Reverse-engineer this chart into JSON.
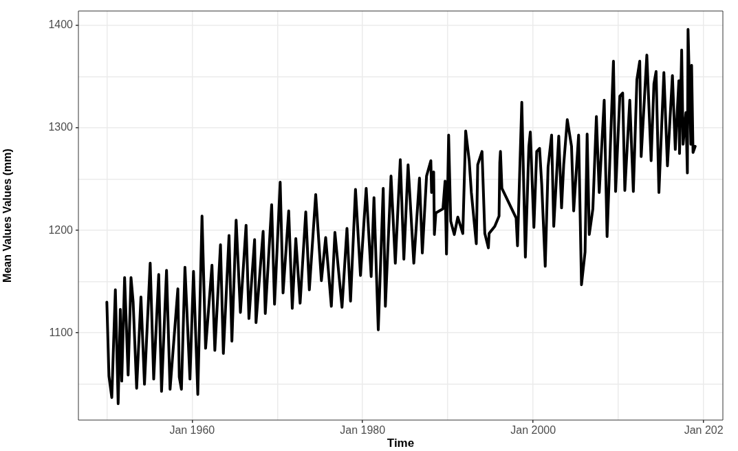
{
  "chart_data": {
    "type": "line",
    "xlabel": "Time",
    "ylabel": "Mean Values Values (mm)",
    "xlim": [
      "1946-09",
      "2022-04"
    ],
    "xticks": [
      {
        "value": "1950-01",
        "label": null
      },
      {
        "value": "1960-01",
        "label": "Jan 1960"
      },
      {
        "value": "1970-01",
        "label": null
      },
      {
        "value": "1980-01",
        "label": "Jan 1980"
      },
      {
        "value": "1990-01",
        "label": null
      },
      {
        "value": "2000-01",
        "label": "Jan 2000"
      },
      {
        "value": "2010-01",
        "label": null
      },
      {
        "value": "2020-01",
        "label": "Jan 202"
      }
    ],
    "ylim": [
      1015,
      1414
    ],
    "yticks": [
      {
        "value": 1050,
        "label": null
      },
      1100,
      {
        "value": 1150,
        "label": null
      },
      1200,
      {
        "value": 1250,
        "label": null
      },
      1300,
      {
        "value": 1350,
        "label": null
      },
      1400
    ],
    "grid": true,
    "legend": false,
    "marker": "none",
    "line_style": "solid",
    "series": [
      {
        "color": "#000000",
        "x": [
          "1950-01",
          "1950-04",
          "1950-08",
          "1951-01",
          "1951-05",
          "1951-08",
          "1951-10",
          "1952-02",
          "1952-07",
          "1952-11",
          "1953-02",
          "1953-07",
          "1954-01",
          "1954-06",
          "1955-02",
          "1955-07",
          "1956-02",
          "1956-06",
          "1957-01",
          "1957-06",
          "1958-05",
          "1958-07",
          "1958-10",
          "1959-03",
          "1959-10",
          "1960-03",
          "1960-09",
          "1961-03",
          "1961-08",
          "1962-05",
          "1962-09",
          "1963-05",
          "1963-09",
          "1964-05",
          "1964-09",
          "1965-03",
          "1965-09",
          "1966-05",
          "1966-09",
          "1967-05",
          "1967-07",
          "1968-05",
          "1968-08",
          "1969-05",
          "1969-09",
          "1970-05",
          "1970-09",
          "1971-05",
          "1971-10",
          "1972-03",
          "1972-09",
          "1973-05",
          "1973-10",
          "1974-07",
          "1975-03",
          "1975-09",
          "1976-05",
          "1976-10",
          "1977-08",
          "1978-03",
          "1978-08",
          "1979-03",
          "1979-10",
          "1980-06",
          "1981-01",
          "1981-05",
          "1981-11",
          "1982-06",
          "1982-09",
          "1983-05",
          "1983-11",
          "1984-06",
          "1984-11",
          "1985-05",
          "1986-01",
          "1986-09",
          "1987-01",
          "1987-07",
          "1988-01",
          "1988-02",
          "1988-05",
          "1988-06",
          "1988-08",
          "1989-06",
          "1989-09",
          "1989-11",
          "1990-02",
          "1990-05",
          "1990-10",
          "1991-03",
          "1991-10",
          "1992-02",
          "1992-07",
          "1992-10",
          "1993-05",
          "1993-07",
          "1994-01",
          "1994-05",
          "1994-10",
          "1994-11",
          "1995-07",
          "1996-01",
          "1996-02",
          "1996-03",
          "1996-05",
          "1998-01",
          "1998-03",
          "1998-09",
          "1999-02",
          "1999-07",
          "1999-09",
          "2000-02",
          "2000-06",
          "2000-10",
          "2001-01",
          "2001-06",
          "2001-10",
          "2002-03",
          "2002-06",
          "2003-01",
          "2003-05",
          "2003-08",
          "2004-01",
          "2004-07",
          "2004-10",
          "2005-05",
          "2005-09",
          "2006-02",
          "2006-05",
          "2006-08",
          "2007-01",
          "2007-06",
          "2007-10",
          "2008-05",
          "2008-09",
          "2009-06",
          "2009-09",
          "2010-03",
          "2010-07",
          "2010-10",
          "2011-05",
          "2011-10",
          "2012-03",
          "2012-07",
          "2012-09",
          "2013-05",
          "2013-11",
          "2014-03",
          "2014-06",
          "2014-10",
          "2015-05",
          "2015-10",
          "2016-05",
          "2016-09",
          "2017-02",
          "2017-03",
          "2017-06",
          "2017-08",
          "2017-12",
          "2018-02",
          "2018-03",
          "2018-07",
          "2018-08",
          "2018-10",
          "2019-01"
        ],
        "values": [
          1130,
          1058,
          1037,
          1142,
          1031,
          1123,
          1053,
          1154,
          1059,
          1154,
          1130,
          1046,
          1135,
          1050,
          1168,
          1055,
          1157,
          1043,
          1161,
          1045,
          1143,
          1057,
          1045,
          1164,
          1055,
          1160,
          1040,
          1214,
          1085,
          1166,
          1083,
          1186,
          1080,
          1195,
          1092,
          1210,
          1120,
          1205,
          1114,
          1191,
          1110,
          1199,
          1119,
          1225,
          1128,
          1247,
          1139,
          1219,
          1124,
          1192,
          1129,
          1218,
          1142,
          1235,
          1151,
          1193,
          1126,
          1198,
          1125,
          1202,
          1131,
          1240,
          1156,
          1241,
          1155,
          1232,
          1103,
          1241,
          1126,
          1253,
          1168,
          1269,
          1172,
          1264,
          1168,
          1251,
          1178,
          1253,
          1268,
          1237,
          1257,
          1196,
          1217,
          1221,
          1248,
          1177,
          1293,
          1209,
          1196,
          1213,
          1197,
          1297,
          1268,
          1237,
          1187,
          1264,
          1277,
          1197,
          1183,
          1197,
          1204,
          1214,
          1266,
          1277,
          1241,
          1212,
          1185,
          1325,
          1174,
          1282,
          1296,
          1203,
          1277,
          1280,
          1245,
          1165,
          1262,
          1293,
          1204,
          1292,
          1222,
          1264,
          1308,
          1282,
          1219,
          1293,
          1147,
          1179,
          1294,
          1196,
          1221,
          1311,
          1237,
          1327,
          1194,
          1365,
          1238,
          1331,
          1334,
          1239,
          1327,
          1238,
          1347,
          1365,
          1272,
          1371,
          1268,
          1343,
          1355,
          1237,
          1354,
          1263,
          1351,
          1279,
          1346,
          1275,
          1376,
          1284,
          1315,
          1256,
          1396,
          1284,
          1361,
          1276,
          1282
        ]
      }
    ]
  }
}
